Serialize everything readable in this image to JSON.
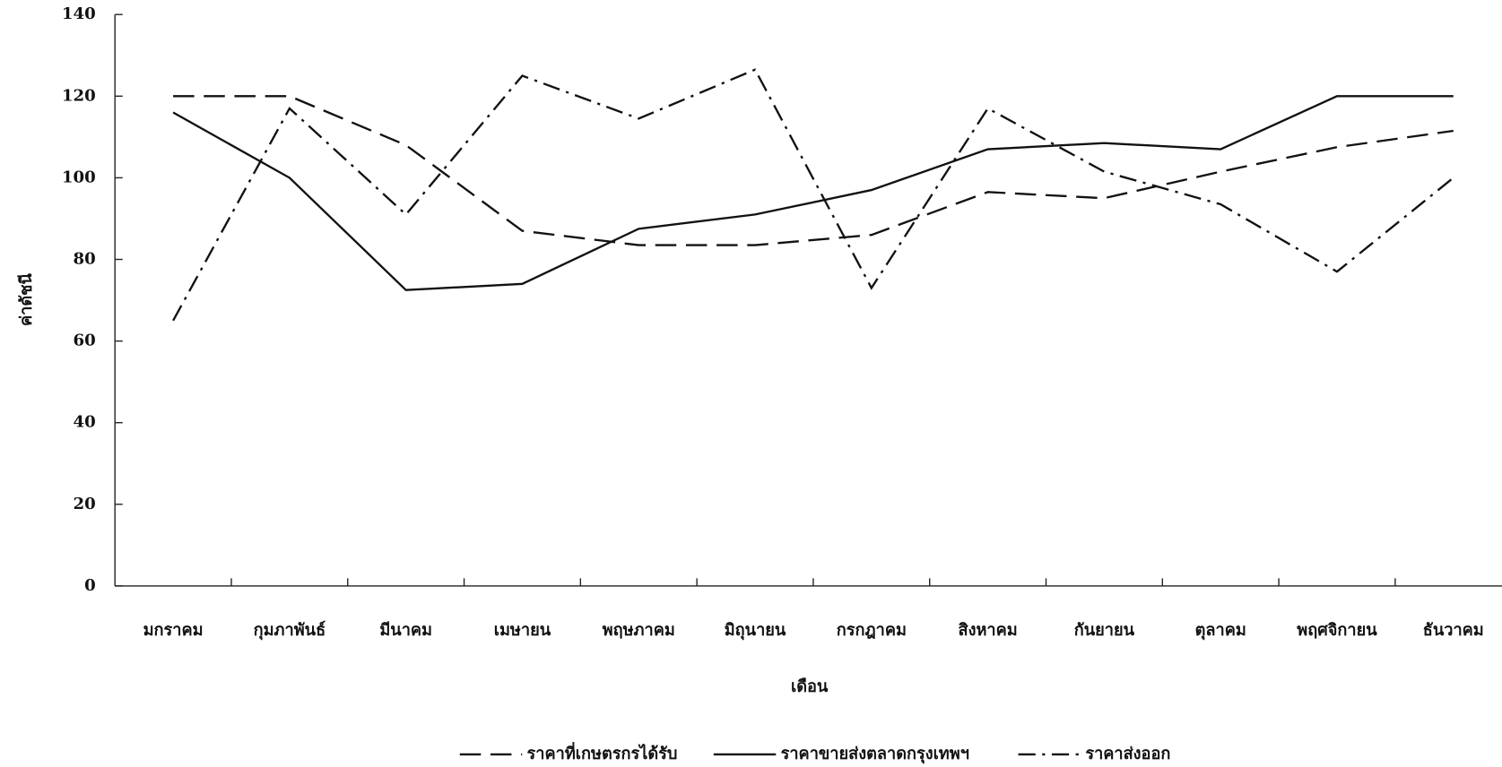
{
  "chart_data": {
    "type": "line",
    "x_label": "เดือน",
    "y_label": "ค่าดัชนี",
    "categories": [
      "มกราคม",
      "กุมภาพันธ์",
      "มีนาคม",
      "เมษายน",
      "พฤษภาคม",
      "มิถุนายน",
      "กรกฎาคม",
      "สิงหาคม",
      "กันยายน",
      "ตุลาคม",
      "พฤศจิกายน",
      "ธันวาคม"
    ],
    "series": [
      {
        "name": "ราคาที่เกษตรกรได้รับ",
        "color": "#111111",
        "linestyle": "dashed",
        "values": [
          120,
          120,
          108,
          87,
          83.5,
          83.5,
          86,
          96.5,
          95,
          101.5,
          107.5,
          111.5
        ]
      },
      {
        "name": "ราคาขายส่งตลาดกรุงเทพฯ",
        "color": "#111111",
        "linestyle": "solid",
        "values": [
          116,
          100,
          72.5,
          74,
          87.5,
          91,
          97,
          107,
          108.5,
          107,
          120,
          120
        ]
      },
      {
        "name": "ราคาส่งออก",
        "color": "#111111",
        "linestyle": "dashdot",
        "values": [
          65,
          117,
          91,
          125,
          114.5,
          126.5,
          73,
          117,
          101.5,
          93.5,
          77,
          100
        ]
      }
    ],
    "ylim": [
      0,
      140
    ],
    "yticks": [
      0,
      20,
      40,
      60,
      80,
      100,
      120,
      140
    ],
    "legend": "bottom"
  }
}
